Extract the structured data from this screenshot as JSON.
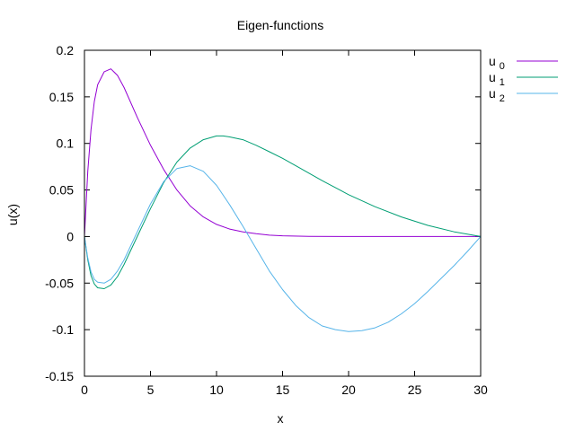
{
  "chart_data": {
    "type": "line",
    "title": "Eigen-functions",
    "xlabel": "x",
    "ylabel": "u(x)",
    "xlim": [
      0,
      30
    ],
    "ylim": [
      -0.15,
      0.2
    ],
    "grid": false,
    "legend_position": "top-right",
    "x_ticks": [
      0,
      5,
      10,
      15,
      20,
      25,
      30
    ],
    "x_tick_labels": [
      "0",
      "5",
      "10",
      "15",
      "20",
      "25",
      "30"
    ],
    "y_ticks": [
      -0.15,
      -0.1,
      -0.05,
      0,
      0.05,
      0.1,
      0.15,
      0.2
    ],
    "y_tick_labels": [
      "-0.15",
      "-0.1",
      "-0.05",
      "0",
      "0.05",
      "0.1",
      "0.15",
      "0.2"
    ],
    "series": [
      {
        "name": "u",
        "name_subscript": "0",
        "color": "#9400d3",
        "x": [
          0,
          0.25,
          0.5,
          0.75,
          1,
          1.5,
          2,
          2.5,
          3,
          4,
          5,
          6,
          7,
          8,
          9,
          10,
          11,
          12,
          13,
          14,
          15,
          17,
          20,
          25,
          30
        ],
        "y": [
          0,
          0.07,
          0.115,
          0.145,
          0.163,
          0.177,
          0.18,
          0.173,
          0.16,
          0.128,
          0.098,
          0.072,
          0.05,
          0.033,
          0.021,
          0.013,
          0.008,
          0.005,
          0.003,
          0.0015,
          0.0008,
          0.0002,
          0,
          0,
          0
        ]
      },
      {
        "name": "u",
        "name_subscript": "1",
        "color": "#009e73",
        "x": [
          0,
          0.25,
          0.5,
          0.75,
          1,
          1.5,
          2,
          2.5,
          3,
          4,
          5,
          6,
          7,
          8,
          9,
          10,
          10.5,
          11,
          12,
          13,
          14,
          15,
          16,
          18,
          20,
          22,
          24,
          26,
          28,
          30
        ],
        "y": [
          0,
          -0.025,
          -0.042,
          -0.051,
          -0.055,
          -0.056,
          -0.052,
          -0.043,
          -0.03,
          0,
          0.03,
          0.058,
          0.08,
          0.095,
          0.104,
          0.108,
          0.108,
          0.107,
          0.104,
          0.098,
          0.091,
          0.084,
          0.076,
          0.06,
          0.045,
          0.032,
          0.021,
          0.012,
          0.005,
          0
        ]
      },
      {
        "name": "u",
        "name_subscript": "2",
        "color": "#56b4e9",
        "x": [
          0,
          0.25,
          0.5,
          0.75,
          1,
          1.5,
          2,
          2.5,
          3,
          4,
          5,
          6,
          7,
          8,
          9,
          10,
          11,
          12,
          13,
          14,
          15,
          16,
          17,
          18,
          19,
          20,
          21,
          22,
          23,
          24,
          25,
          26,
          27,
          28,
          29,
          30
        ],
        "y": [
          0,
          -0.023,
          -0.038,
          -0.046,
          -0.049,
          -0.05,
          -0.046,
          -0.037,
          -0.025,
          0.005,
          0.035,
          0.059,
          0.073,
          0.076,
          0.07,
          0.055,
          0.034,
          0.011,
          -0.013,
          -0.037,
          -0.057,
          -0.074,
          -0.087,
          -0.096,
          -0.1,
          -0.102,
          -0.101,
          -0.098,
          -0.092,
          -0.083,
          -0.072,
          -0.059,
          -0.045,
          -0.031,
          -0.016,
          0
        ]
      }
    ]
  }
}
